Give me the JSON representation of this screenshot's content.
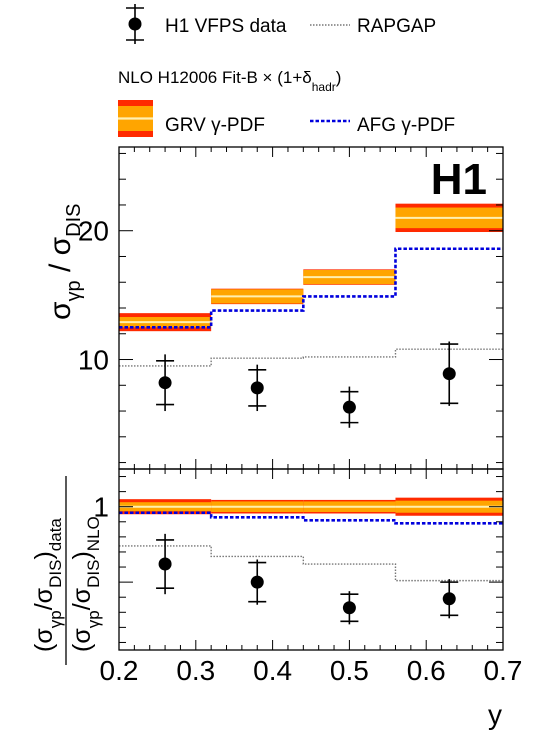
{
  "legend": {
    "data_label": "H1 VFPS data",
    "rapgap_label": "RAPGAP",
    "nlo_heading": "NLO H12006 Fit-B × (1+δ",
    "nlo_heading_sub": "hadr",
    "nlo_heading_close": ")",
    "grv_label": "GRV γ-PDF",
    "afg_label": "AFG γ-PDF"
  },
  "logo": "H1",
  "colors": {
    "grv_band": "#ffa500",
    "grv_outer": "#ff2a00",
    "grv_center": "#fff0b0",
    "afg": "#0000dd",
    "rapgap": "#777777",
    "data": "#000000"
  },
  "chart_data": [
    {
      "type": "line",
      "panel": "top",
      "ylabel": "σγp / σDIS",
      "yticks": [
        10,
        20
      ],
      "ylim": [
        1.5,
        26.5
      ],
      "xlim": [
        0.2,
        0.7
      ],
      "bin_edges": [
        0.2,
        0.32,
        0.44,
        0.56,
        0.7
      ],
      "series": [
        {
          "name": "H1 VFPS data",
          "kind": "points",
          "x": [
            0.26,
            0.38,
            0.5,
            0.63
          ],
          "y": [
            8.2,
            7.8,
            6.3,
            8.9
          ],
          "stat_err": [
            1.7,
            1.4,
            1.2,
            2.3
          ],
          "tot_err": [
            2.2,
            1.8,
            1.6,
            2.5
          ]
        },
        {
          "name": "GRV γ-PDF",
          "kind": "band",
          "center": [
            12.9,
            14.9,
            16.4,
            21.0
          ],
          "inner_half": [
            0.4,
            0.55,
            0.55,
            0.8
          ],
          "outer_half": [
            0.7,
            0.6,
            0.6,
            1.1
          ]
        },
        {
          "name": "AFG γ-PDF",
          "kind": "step",
          "values": [
            12.5,
            13.8,
            14.9,
            18.6
          ]
        },
        {
          "name": "RAPGAP",
          "kind": "step",
          "values": [
            9.5,
            10.1,
            10.2,
            10.8
          ]
        }
      ]
    },
    {
      "type": "line",
      "panel": "ratio",
      "ylabel": "(σγp/σDIS)data / (σγp/σDIS)NLO",
      "xlabel": "y",
      "xticks": [
        0.2,
        0.3,
        0.4,
        0.5,
        0.6,
        0.7
      ],
      "ylim": [
        0.05,
        1.25
      ],
      "yticks": [
        1
      ],
      "xlim": [
        0.2,
        0.7
      ],
      "bin_edges": [
        0.2,
        0.32,
        0.44,
        0.56,
        0.7
      ],
      "series": [
        {
          "name": "H1 VFPS data",
          "kind": "points",
          "x": [
            0.26,
            0.38,
            0.5,
            0.63
          ],
          "y": [
            0.62,
            0.5,
            0.33,
            0.39
          ],
          "stat_err": [
            0.16,
            0.13,
            0.09,
            0.11
          ],
          "tot_err": [
            0.2,
            0.15,
            0.11,
            0.13
          ]
        },
        {
          "name": "GRV γ-PDF",
          "kind": "band",
          "center": [
            1.0,
            1.0,
            1.0,
            1.0
          ],
          "inner_half": [
            0.03,
            0.035,
            0.035,
            0.04
          ],
          "outer_half": [
            0.05,
            0.045,
            0.045,
            0.06
          ]
        },
        {
          "name": "AFG γ-PDF",
          "kind": "step",
          "values": [
            0.96,
            0.93,
            0.91,
            0.89
          ]
        },
        {
          "name": "RAPGAP",
          "kind": "step",
          "values": [
            0.74,
            0.67,
            0.62,
            0.51
          ]
        }
      ]
    }
  ]
}
